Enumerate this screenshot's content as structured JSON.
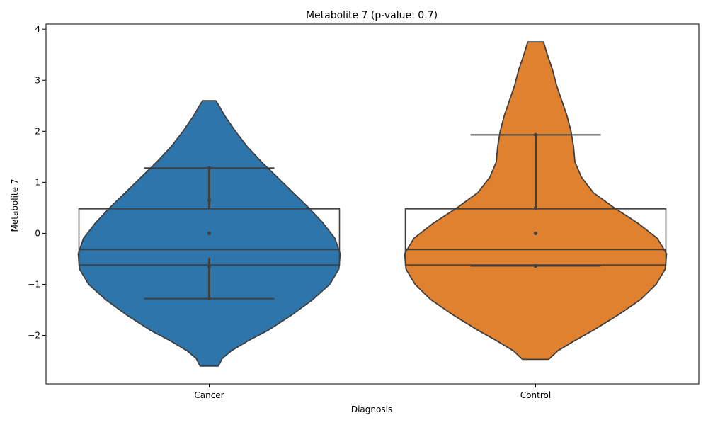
{
  "chart_data": {
    "type": "violin",
    "title": "Metabolite 7 (p-value: 0.7)",
    "xlabel": "Diagnosis",
    "ylabel": "Metabolite 7",
    "ylim": [
      -2.95,
      4.1
    ],
    "yticks": [
      -2,
      -1,
      0,
      1,
      2,
      3,
      4
    ],
    "ytick_labels": [
      "−2",
      "−1",
      "0",
      "1",
      "2",
      "3",
      "4"
    ],
    "categories": [
      "Cancer",
      "Control"
    ],
    "colors": {
      "Cancer": "#2e75ab",
      "Control": "#e0812f",
      "edge": "#3f3f3f"
    },
    "series": [
      {
        "name": "Cancer",
        "violin_range": [
          -2.6,
          2.6
        ],
        "points": [
          1.28,
          0.65,
          0.0,
          -0.65,
          -1.28
        ],
        "vertical_segments": [
          [
            0.48,
            1.28
          ],
          [
            -1.28,
            -0.48
          ]
        ],
        "horizontal_lines": [
          1.28,
          -0.32,
          -1.28
        ],
        "box": {
          "q1": -0.62,
          "median": -0.32,
          "q3": 0.48
        },
        "density": [
          [
            -2.6,
            0.07
          ],
          [
            -2.45,
            0.1
          ],
          [
            -2.3,
            0.17
          ],
          [
            -2.1,
            0.3
          ],
          [
            -1.9,
            0.45
          ],
          [
            -1.6,
            0.63
          ],
          [
            -1.3,
            0.79
          ],
          [
            -1.0,
            0.92
          ],
          [
            -0.7,
            0.99
          ],
          [
            -0.4,
            1.0
          ],
          [
            -0.1,
            0.96
          ],
          [
            0.2,
            0.87
          ],
          [
            0.5,
            0.76
          ],
          [
            0.8,
            0.64
          ],
          [
            1.1,
            0.52
          ],
          [
            1.4,
            0.4
          ],
          [
            1.7,
            0.29
          ],
          [
            2.0,
            0.2
          ],
          [
            2.3,
            0.12
          ],
          [
            2.5,
            0.075
          ],
          [
            2.6,
            0.05
          ]
        ]
      },
      {
        "name": "Control",
        "violin_range": [
          -2.47,
          3.75
        ],
        "points": [
          1.93,
          0.5,
          0.0,
          -0.64
        ],
        "vertical_segments": [
          [
            0.48,
            1.93
          ]
        ],
        "horizontal_lines": [
          1.93,
          -0.32,
          -0.64
        ],
        "box": {
          "q1": -0.62,
          "median": -0.32,
          "q3": 0.48
        },
        "density": [
          [
            -2.47,
            0.1
          ],
          [
            -2.3,
            0.17
          ],
          [
            -2.1,
            0.3
          ],
          [
            -1.9,
            0.44
          ],
          [
            -1.6,
            0.63
          ],
          [
            -1.3,
            0.8
          ],
          [
            -1.0,
            0.92
          ],
          [
            -0.7,
            0.99
          ],
          [
            -0.4,
            1.0
          ],
          [
            -0.1,
            0.93
          ],
          [
            0.2,
            0.78
          ],
          [
            0.5,
            0.6
          ],
          [
            0.8,
            0.44
          ],
          [
            1.1,
            0.35
          ],
          [
            1.4,
            0.3
          ],
          [
            1.7,
            0.29
          ],
          [
            2.0,
            0.27
          ],
          [
            2.3,
            0.24
          ],
          [
            2.6,
            0.2
          ],
          [
            2.9,
            0.16
          ],
          [
            3.2,
            0.13
          ],
          [
            3.5,
            0.09
          ],
          [
            3.75,
            0.06
          ]
        ]
      }
    ]
  }
}
